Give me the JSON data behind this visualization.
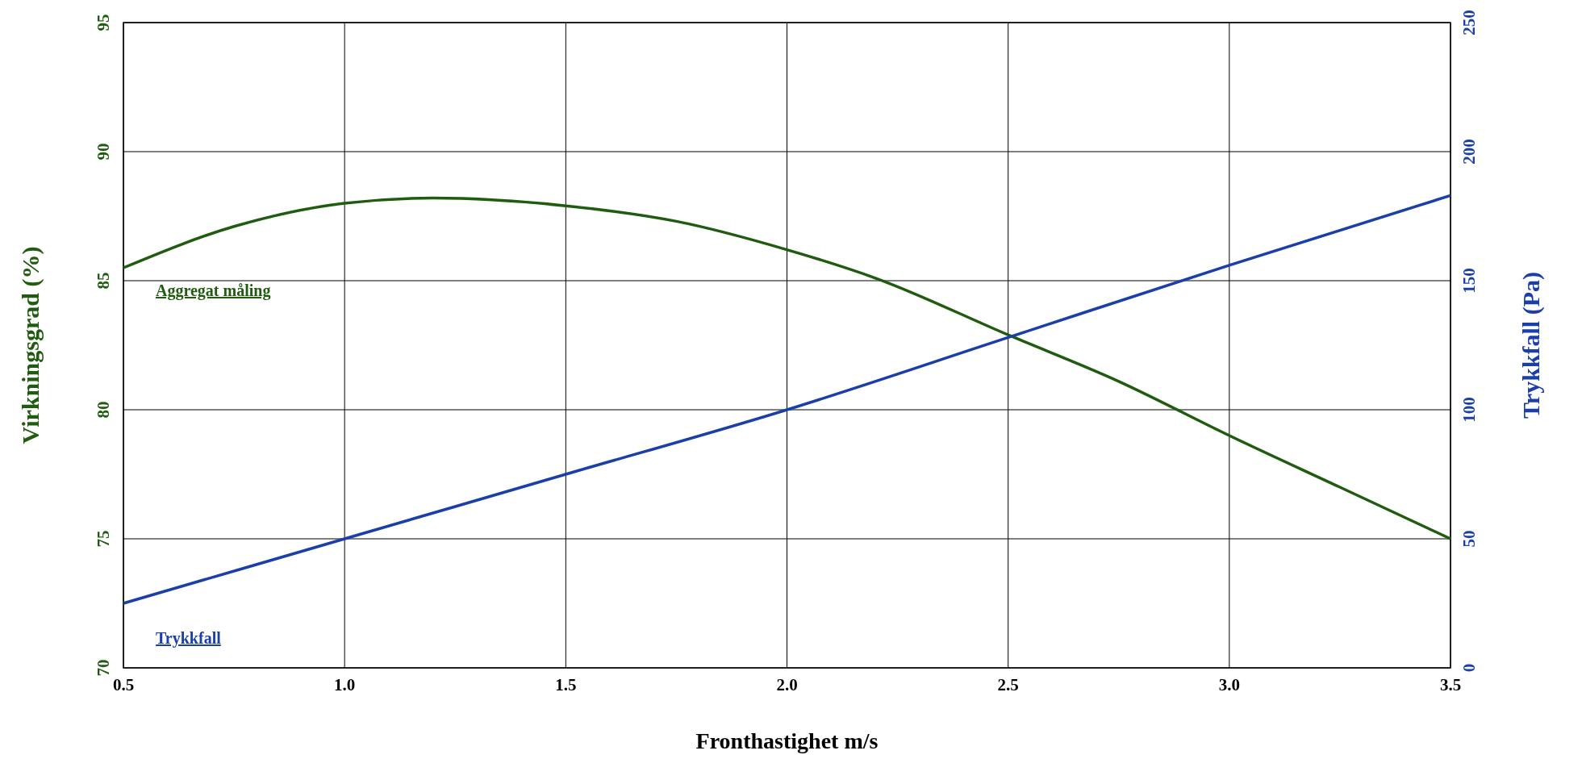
{
  "chart_data": {
    "type": "line",
    "xlabel": "Fronthastighet  m/s",
    "ylabel": "Virkningsgrad  (%)",
    "y2label": "Trykkfall (Pa)",
    "xlim": [
      0.5,
      3.5
    ],
    "xticks": [
      {
        "value": 0.5,
        "label": "0.5"
      },
      {
        "value": 1,
        "label": "1.0"
      },
      {
        "value": 1.5,
        "label": "1.5"
      },
      {
        "value": 2,
        "label": "2.0"
      },
      {
        "value": 2.5,
        "label": "2.5"
      },
      {
        "value": 3,
        "label": "3.0"
      },
      {
        "value": 3.5,
        "label": "3.5"
      }
    ],
    "ylim": [
      70,
      95
    ],
    "yticks": [
      70,
      75,
      80,
      85,
      90,
      95
    ],
    "y2lim": [
      0,
      250
    ],
    "y2ticks": [
      0,
      50,
      100,
      150,
      200,
      250
    ],
    "grid": true,
    "series": [
      {
        "name": "Aggregat måling",
        "color": "#1f5c0f",
        "x": [
          0.5,
          0.75,
          1.0,
          1.2,
          1.5,
          1.75,
          2.0,
          2.2,
          2.5,
          2.75,
          3.0,
          3.25,
          3.5
        ],
        "values": [
          85.5,
          87.1,
          88.0,
          88.2,
          87.9,
          87.3,
          86.2,
          85.1,
          82.9,
          81.1,
          79.0,
          77.0,
          75.0
        ]
      },
      {
        "name": "Trykkfall",
        "color": "#1a3fa8",
        "axis": "y2",
        "x": [
          0.5,
          1.0,
          1.5,
          2.0,
          2.5,
          3.0,
          3.5
        ],
        "values": [
          25,
          50,
          75,
          100,
          128,
          156,
          183
        ]
      }
    ]
  }
}
